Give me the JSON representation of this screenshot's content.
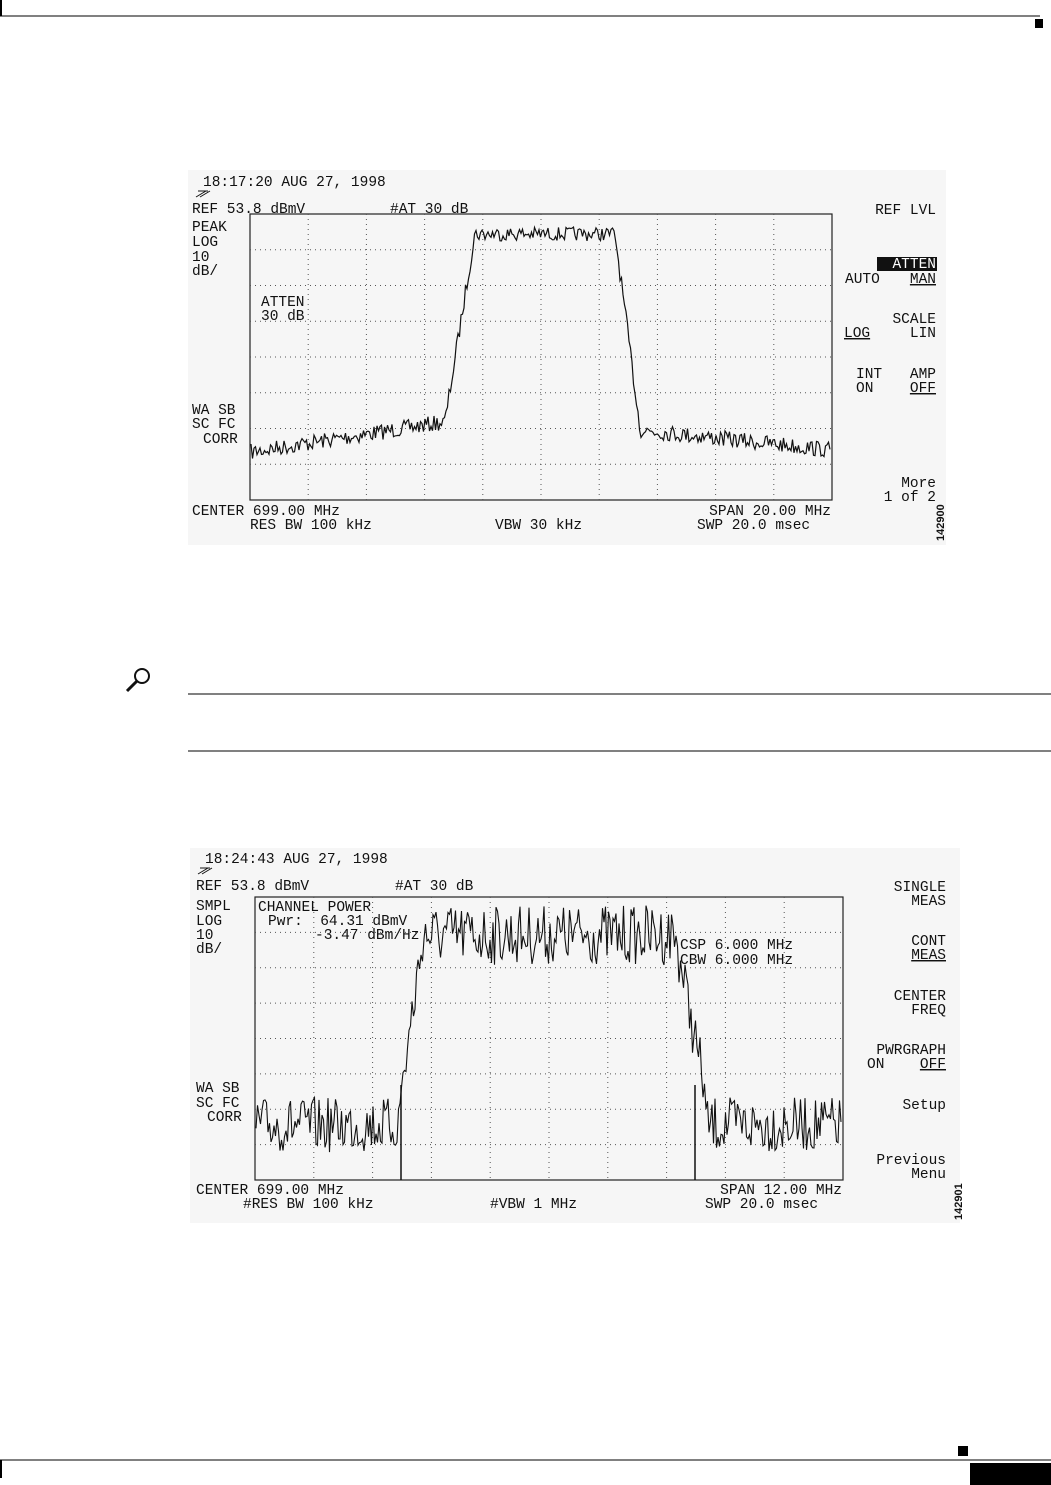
{
  "figures": [
    {
      "timestamp": "18:17:20 AUG 27, 1998",
      "ref": "REF 53.8 dBmV",
      "atten_setting": "#AT 30 dB",
      "left_labels": [
        "PEAK",
        "LOG",
        "10",
        "dB/"
      ],
      "overlay": [
        "ATTEN",
        "30 dB"
      ],
      "correction": [
        "WA SB",
        "SC FC",
        "CORR"
      ],
      "center": "CENTER 699.00 MHz",
      "span": "SPAN 20.00 MHz",
      "res_bw": "RES BW 100 kHz",
      "vbw": "VBW 30 kHz",
      "sweep": "SWP 20.0 msec",
      "softkeys": [
        [
          "REF LVL"
        ],
        [
          "ATTEN"
        ],
        [
          "AUTO",
          "MAN"
        ],
        [
          "SCALE"
        ],
        [
          "LOG",
          "LIN"
        ],
        [
          "INT",
          "AMP"
        ],
        [
          "ON",
          "OFF"
        ],
        [
          "More"
        ],
        [
          "1 of 2"
        ]
      ],
      "figure_id": "142900"
    },
    {
      "timestamp": "18:24:43 AUG 27, 1998",
      "ref": "REF 53.8 dBmV",
      "atten_setting": "#AT 30 dB",
      "left_labels": [
        "SMPL",
        "LOG",
        "10",
        "dB/"
      ],
      "overlay": [
        "CHANNEL POWER",
        "Pwr:  64.31 dBmV",
        "-3.47 dBm/Hz",
        "CSP 6.000 MHz",
        "CBW 6.000 MHz"
      ],
      "correction": [
        "WA SB",
        "SC FC",
        "CORR"
      ],
      "center": "CENTER 699.00 MHz",
      "span": "SPAN 12.00 MHz",
      "res_bw": "#RES BW 100 kHz",
      "vbw": "#VBW 1 MHz",
      "sweep": "SWP 20.0 msec",
      "softkeys": [
        [
          "SINGLE"
        ],
        [
          "MEAS"
        ],
        [
          "CONT"
        ],
        [
          "MEAS"
        ],
        [
          "CENTER"
        ],
        [
          "FREQ"
        ],
        [
          "PWRGRAPH"
        ],
        [
          "ON",
          "OFF"
        ],
        [
          "Setup"
        ],
        [
          "Previous"
        ],
        [
          "Menu"
        ]
      ],
      "figure_id": "142901"
    }
  ]
}
